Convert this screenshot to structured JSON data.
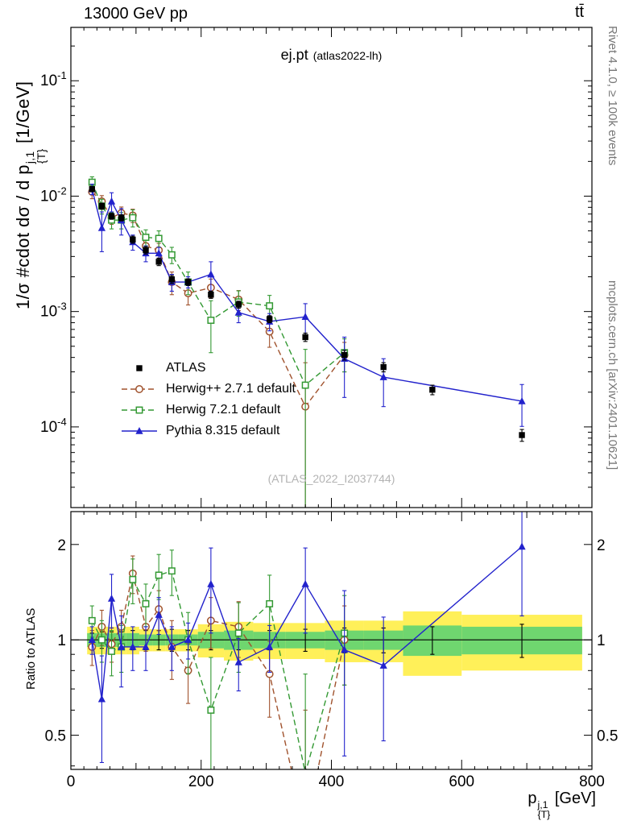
{
  "header": {
    "left": "13000 GeV pp",
    "right": "tt̄"
  },
  "panel_title": {
    "main": "ej.pt",
    "sub": "(atlas2022-lh)"
  },
  "watermark": "(ATLAS_2022_I2037744)",
  "side_notes": {
    "top_right": "Rivet 4.1.0, ≥ 100k events",
    "bottom_right": "mcplots.cern.ch [arXiv:2401.10621]"
  },
  "axes": {
    "y_top": {
      "prefix": "1/σ #cdot dσ / d p",
      "sup": "j,1",
      "sub": "{T}",
      "suffix": " [1/GeV]"
    },
    "y_bottom": "Ratio to ATLAS",
    "x": {
      "prefix": "p",
      "sup": "j,1",
      "sub": "{T}",
      "suffix": " [GeV]"
    }
  },
  "legend": [
    {
      "label": "ATLAS",
      "marker": "filled-square",
      "line": "none",
      "color": "#000000"
    },
    {
      "label": "Herwig++ 2.7.1 default",
      "marker": "open-circle",
      "line": "dashed",
      "color": "#a0522d"
    },
    {
      "label": "Herwig 7.2.1 default",
      "marker": "open-square",
      "line": "dashed",
      "color": "#339933"
    },
    {
      "label": "Pythia 8.315 default",
      "marker": "filled-triangle",
      "line": "solid",
      "color": "#2222cc"
    }
  ],
  "chart_data": [
    {
      "type": "line",
      "title": "ej.pt (atlas2022-lh)",
      "xlabel": "p^{j,1}_{T} [GeV]",
      "ylabel": "1/σ #cdot dσ / d p^{j,1}_{T} [1/GeV]",
      "yscale": "log",
      "xlim": [
        0,
        800
      ],
      "ylim": [
        2e-05,
        0.29
      ],
      "xticks": [
        0,
        200,
        400,
        600,
        800
      ],
      "yticks": [
        0.1,
        0.01,
        0.001,
        0.0001
      ],
      "grid": false,
      "legend_position": "left-middle",
      "series": [
        {
          "name": "ATLAS",
          "color": "#000000",
          "marker": "filled-square",
          "line": "none",
          "x": [
            32.5,
            47.5,
            62.5,
            77.5,
            95,
            115,
            135,
            155,
            180,
            215,
            257.5,
            305,
            360,
            420,
            480,
            555,
            692.5
          ],
          "y": [
            0.0115,
            0.0082,
            0.0067,
            0.0065,
            0.0042,
            0.0034,
            0.0027,
            0.0019,
            0.0018,
            0.0014,
            0.00115,
            0.00086,
            0.0006,
            0.00042,
            0.00033,
            0.00021,
            8.5e-05
          ],
          "yerr": [
            0.0006,
            0.0005,
            0.0004,
            0.0004,
            0.0003,
            0.00025,
            0.0002,
            0.00015,
            0.00012,
            0.0001,
            8e-05,
            6e-05,
            5e-05,
            4e-05,
            3e-05,
            2e-05,
            1e-05
          ]
        },
        {
          "name": "Herwig++ 2.7.1 default",
          "color": "#a0522d",
          "marker": "open-circle",
          "line": "dashed",
          "x": [
            32.5,
            47.5,
            62.5,
            77.5,
            95,
            115,
            135,
            155,
            180,
            215,
            257.5,
            305,
            360,
            420
          ],
          "y": [
            0.0109,
            0.009,
            0.0065,
            0.00715,
            0.0068,
            0.0037,
            0.0034,
            0.0018,
            0.00144,
            0.00161,
            0.00127,
            0.00067,
            0.00015,
            0.00042
          ],
          "yerr": [
            0.0014,
            0.0011,
            0.0008,
            0.0009,
            0.0009,
            0.0006,
            0.0005,
            0.0004,
            0.0003,
            0.0003,
            0.00025,
            0.00018,
            0.00021,
            0.00012
          ]
        },
        {
          "name": "Herwig 7.2.1 default",
          "color": "#339933",
          "marker": "open-square",
          "line": "dashed",
          "x": [
            32.5,
            47.5,
            62.5,
            77.5,
            95,
            115,
            135,
            155,
            180,
            215,
            257.5,
            305,
            360,
            420
          ],
          "y": [
            0.0132,
            0.0082,
            0.0062,
            0.0062,
            0.0065,
            0.0044,
            0.0043,
            0.0031,
            0.0018,
            0.00084,
            0.00121,
            0.00112,
            0.00023,
            0.00044
          ],
          "yerr": [
            0.0015,
            0.0012,
            0.001,
            0.001,
            0.0011,
            0.0007,
            0.0007,
            0.0005,
            0.0004,
            0.0004,
            0.0003,
            0.00026,
            0.00024,
            0.00014
          ]
        },
        {
          "name": "Pythia 8.315 default",
          "color": "#2222cc",
          "marker": "filled-triangle",
          "line": "solid",
          "x": [
            32.5,
            47.5,
            62.5,
            77.5,
            95,
            115,
            135,
            155,
            180,
            215,
            257.5,
            305,
            360,
            420,
            480,
            692.5
          ],
          "y": [
            0.0115,
            0.0053,
            0.009,
            0.0062,
            0.004,
            0.0032,
            0.0032,
            0.0018,
            0.0018,
            0.0021,
            0.00098,
            0.00082,
            0.0009,
            0.00039,
            0.00027,
            0.000167
          ],
          "yerr": [
            0.0012,
            0.002,
            0.0017,
            0.0016,
            0.0006,
            0.0005,
            0.0004,
            0.0003,
            0.0002,
            0.0006,
            0.00018,
            0.00014,
            0.00027,
            0.00021,
            0.00012,
            6.6e-05
          ]
        }
      ]
    },
    {
      "type": "ratio",
      "ylabel": "Ratio to ATLAS",
      "yscale": "log",
      "ylim": [
        0.39,
        2.54
      ],
      "yticks": [
        0.5,
        1,
        2
      ],
      "reference_line": 1,
      "bin_edges": [
        25,
        40,
        55,
        70,
        85,
        105,
        125,
        145,
        165,
        195,
        235,
        280,
        330,
        390,
        450,
        510,
        600,
        785
      ],
      "bands": {
        "yellow_color": "#fff059",
        "green_color": "#6fd66f",
        "yellow_halfwidth": [
          0.1,
          0.1,
          0.1,
          0.1,
          0.1,
          0.08,
          0.08,
          0.08,
          0.08,
          0.12,
          0.14,
          0.13,
          0.13,
          0.15,
          0.15,
          0.23,
          0.2
        ],
        "green_halfwidth": [
          0.05,
          0.05,
          0.05,
          0.05,
          0.05,
          0.04,
          0.04,
          0.04,
          0.04,
          0.06,
          0.07,
          0.06,
          0.06,
          0.07,
          0.07,
          0.11,
          0.1
        ]
      },
      "series": [
        {
          "name": "ATLAS",
          "color": "#000000",
          "marker": "none",
          "line": "reference",
          "x": [
            32.5,
            47.5,
            62.5,
            77.5,
            95,
            115,
            135,
            155,
            180,
            215,
            257.5,
            305,
            360,
            420,
            480,
            555,
            692.5
          ],
          "ratio": [
            1,
            1,
            1,
            1,
            1,
            1,
            1,
            1,
            1,
            1,
            1,
            1,
            1,
            1,
            1,
            1,
            1
          ],
          "err": [
            0.05,
            0.06,
            0.06,
            0.06,
            0.07,
            0.07,
            0.07,
            0.08,
            0.07,
            0.07,
            0.07,
            0.07,
            0.08,
            0.09,
            0.09,
            0.1,
            0.12
          ]
        },
        {
          "name": "Herwig++ 2.7.1 default",
          "color": "#a0522d",
          "marker": "open-circle",
          "line": "dashed",
          "x": [
            32.5,
            47.5,
            62.5,
            77.5,
            95,
            115,
            135,
            155,
            180,
            215,
            257.5,
            305,
            360,
            420
          ],
          "ratio": [
            0.95,
            1.1,
            0.97,
            1.1,
            1.62,
            1.1,
            1.25,
            0.95,
            0.8,
            1.15,
            1.1,
            0.78,
            0.25,
            1.0
          ],
          "err": [
            0.12,
            0.14,
            0.12,
            0.14,
            0.22,
            0.18,
            0.18,
            0.2,
            0.17,
            0.21,
            0.22,
            0.21,
            0.35,
            0.28
          ]
        },
        {
          "name": "Herwig 7.2.1 default",
          "color": "#339933",
          "marker": "open-square",
          "line": "dashed",
          "x": [
            32.5,
            47.5,
            62.5,
            77.5,
            95,
            115,
            135,
            155,
            180,
            215,
            257.5,
            305,
            360,
            420
          ],
          "ratio": [
            1.15,
            1.0,
            0.92,
            0.95,
            1.55,
            1.3,
            1.6,
            1.65,
            1.0,
            0.6,
            1.05,
            1.3,
            0.38,
            1.05
          ],
          "err": [
            0.13,
            0.15,
            0.15,
            0.16,
            0.25,
            0.2,
            0.26,
            0.27,
            0.22,
            0.28,
            0.26,
            0.3,
            0.4,
            0.33
          ]
        },
        {
          "name": "Pythia 8.315 default",
          "color": "#2222cc",
          "marker": "filled-triangle",
          "line": "solid",
          "x": [
            32.5,
            47.5,
            62.5,
            77.5,
            95,
            115,
            135,
            155,
            180,
            215,
            257.5,
            305,
            360,
            420,
            480,
            692.5
          ],
          "ratio": [
            1.0,
            0.65,
            1.35,
            0.95,
            0.95,
            0.95,
            1.2,
            0.95,
            1.0,
            1.5,
            0.85,
            0.95,
            1.5,
            0.93,
            0.83,
            1.97
          ],
          "err": [
            0.1,
            0.24,
            0.26,
            0.24,
            0.15,
            0.15,
            0.16,
            0.15,
            0.13,
            0.45,
            0.16,
            0.16,
            0.45,
            0.5,
            0.35,
            0.78
          ]
        }
      ]
    }
  ]
}
